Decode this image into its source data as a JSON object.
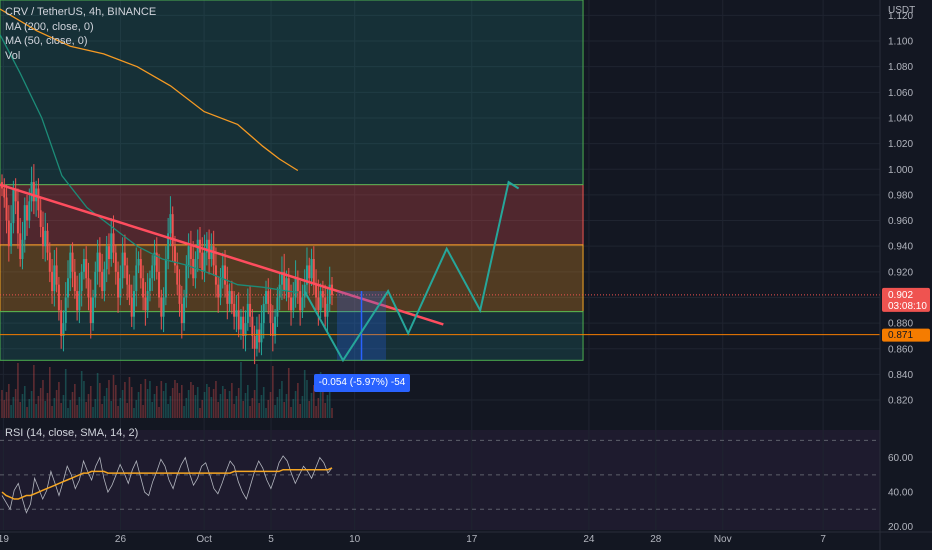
{
  "legend": {
    "symbol": "CRV / TetherUS, 4h, BINANCE",
    "ma200": "MA (200, close, 0)",
    "ma50": "MA (50, close, 0)",
    "vol": "Vol"
  },
  "rsi_legend": "RSI (14, close, SMA, 14, 2)",
  "currency": "USDT",
  "price_label": "0.902",
  "countdown": "03:08:10",
  "line_label": "0.871",
  "measure_label": "-0.054 (-5.97%) -54",
  "colors": {
    "background": "#131722",
    "up": "#26a69a",
    "down": "#ef5350",
    "ma200": "#f59a23",
    "ma50": "#1c8c78",
    "trendline": "#ff4d5e",
    "projection": "#26a69a",
    "measure": "#2962ff",
    "hline": "#f57c00"
  },
  "chart_data": [
    {
      "type": "candlestick",
      "title": "CRV / TetherUS, 4h, BINANCE",
      "y_unit": "USDT",
      "y_ticks": [
        1.12,
        1.1,
        1.08,
        1.06,
        1.04,
        1.02,
        1.0,
        0.98,
        0.96,
        0.94,
        0.92,
        0.9,
        0.88,
        0.86,
        0.84,
        0.82
      ],
      "y_tick_labels": [
        "1.120",
        "1.100",
        "1.080",
        "1.060",
        "1.040",
        "1.020",
        "1.000",
        "0.980",
        "0.960",
        "0.940",
        "0.920",
        "",
        "0.880",
        "0.860",
        "0.840",
        "0.820"
      ],
      "x_tick_labels": [
        "19",
        "26",
        "Oct",
        "5",
        "10",
        "17",
        "24",
        "28",
        "Nov",
        "7"
      ],
      "x_tick_days": [
        19,
        26,
        31,
        35,
        40,
        47,
        54,
        58,
        62,
        68
      ],
      "x_domain_days": [
        18.8,
        71.4
      ],
      "ylim": [
        0.806,
        1.132
      ],
      "last_price": 0.902,
      "candles": [
        [
          0.99,
          0.985
        ],
        [
          0.985,
          0.978
        ],
        [
          0.978,
          0.96
        ],
        [
          0.96,
          0.94
        ],
        [
          0.94,
          0.958
        ],
        [
          0.958,
          0.985
        ],
        [
          0.985,
          0.975
        ],
        [
          0.975,
          0.95
        ],
        [
          0.95,
          0.93
        ],
        [
          0.93,
          0.945
        ],
        [
          0.945,
          0.972
        ],
        [
          0.972,
          0.96
        ],
        [
          0.96,
          0.975
        ],
        [
          0.975,
          0.99
        ],
        [
          0.99,
          0.975
        ],
        [
          0.975,
          0.985
        ],
        [
          0.985,
          0.968
        ],
        [
          0.968,
          0.955
        ],
        [
          0.955,
          0.94
        ],
        [
          0.94,
          0.952
        ],
        [
          0.952,
          0.935
        ],
        [
          0.935,
          0.92
        ],
        [
          0.92,
          0.905
        ],
        [
          0.905,
          0.925
        ],
        [
          0.925,
          0.91
        ],
        [
          0.91,
          0.89
        ],
        [
          0.89,
          0.87
        ],
        [
          0.87,
          0.88
        ],
        [
          0.88,
          0.9
        ],
        [
          0.9,
          0.915
        ],
        [
          0.915,
          0.935
        ],
        [
          0.935,
          0.92
        ],
        [
          0.92,
          0.905
        ],
        [
          0.905,
          0.89
        ],
        [
          0.89,
          0.905
        ],
        [
          0.905,
          0.92
        ],
        [
          0.92,
          0.93
        ],
        [
          0.93,
          0.915
        ],
        [
          0.915,
          0.9
        ],
        [
          0.9,
          0.88
        ],
        [
          0.88,
          0.9
        ],
        [
          0.9,
          0.92
        ],
        [
          0.92,
          0.935
        ],
        [
          0.935,
          0.92
        ],
        [
          0.92,
          0.905
        ],
        [
          0.905,
          0.922
        ],
        [
          0.922,
          0.94
        ],
        [
          0.94,
          0.93
        ],
        [
          0.93,
          0.95
        ],
        [
          0.95,
          0.935
        ],
        [
          0.935,
          0.92
        ],
        [
          0.92,
          0.9
        ],
        [
          0.9,
          0.915
        ],
        [
          0.915,
          0.935
        ],
        [
          0.935,
          0.925
        ],
        [
          0.925,
          0.91
        ],
        [
          0.91,
          0.9
        ],
        [
          0.9,
          0.885
        ],
        [
          0.885,
          0.905
        ],
        [
          0.905,
          0.925
        ],
        [
          0.925,
          0.93
        ],
        [
          0.93,
          0.915
        ],
        [
          0.915,
          0.9
        ],
        [
          0.9,
          0.89
        ],
        [
          0.89,
          0.905
        ],
        [
          0.905,
          0.915
        ],
        [
          0.915,
          0.925
        ],
        [
          0.925,
          0.935
        ],
        [
          0.935,
          0.92
        ],
        [
          0.92,
          0.9
        ],
        [
          0.9,
          0.885
        ],
        [
          0.885,
          0.9
        ],
        [
          0.9,
          0.93
        ],
        [
          0.93,
          0.95
        ],
        [
          0.95,
          0.965
        ],
        [
          0.965,
          0.94
        ],
        [
          0.94,
          0.925
        ],
        [
          0.925,
          0.91
        ],
        [
          0.91,
          0.895
        ],
        [
          0.895,
          0.88
        ],
        [
          0.88,
          0.9
        ],
        [
          0.9,
          0.925
        ],
        [
          0.925,
          0.94
        ],
        [
          0.94,
          0.93
        ],
        [
          0.93,
          0.915
        ],
        [
          0.915,
          0.93
        ],
        [
          0.93,
          0.945
        ],
        [
          0.945,
          0.935
        ],
        [
          0.935,
          0.92
        ],
        [
          0.92,
          0.935
        ],
        [
          0.935,
          0.945
        ],
        [
          0.945,
          0.93
        ],
        [
          0.93,
          0.94
        ],
        [
          0.94,
          0.925
        ],
        [
          0.925,
          0.91
        ],
        [
          0.91,
          0.9
        ],
        [
          0.9,
          0.915
        ],
        [
          0.915,
          0.925
        ],
        [
          0.925,
          0.91
        ],
        [
          0.91,
          0.895
        ],
        [
          0.895,
          0.905
        ],
        [
          0.905,
          0.895
        ],
        [
          0.895,
          0.885
        ],
        [
          0.885,
          0.89
        ],
        [
          0.89,
          0.875
        ],
        [
          0.875,
          0.885
        ],
        [
          0.885,
          0.87
        ],
        [
          0.87,
          0.88
        ],
        [
          0.88,
          0.895
        ],
        [
          0.895,
          0.885
        ],
        [
          0.885,
          0.87
        ],
        [
          0.87,
          0.86
        ],
        [
          0.86,
          0.875
        ],
        [
          0.875,
          0.865
        ],
        [
          0.865,
          0.88
        ],
        [
          0.88,
          0.895
        ],
        [
          0.895,
          0.905
        ],
        [
          0.905,
          0.895
        ],
        [
          0.895,
          0.88
        ],
        [
          0.88,
          0.87
        ],
        [
          0.87,
          0.885
        ],
        [
          0.885,
          0.9
        ],
        [
          0.9,
          0.91
        ],
        [
          0.91,
          0.92
        ],
        [
          0.92,
          0.905
        ],
        [
          0.905,
          0.915
        ],
        [
          0.915,
          0.9
        ],
        [
          0.9,
          0.89
        ],
        [
          0.89,
          0.9
        ],
        [
          0.9,
          0.915
        ],
        [
          0.915,
          0.905
        ],
        [
          0.905,
          0.89
        ],
        [
          0.89,
          0.9
        ],
        [
          0.9,
          0.91
        ],
        [
          0.91,
          0.925
        ],
        [
          0.925,
          0.915
        ],
        [
          0.915,
          0.93
        ],
        [
          0.93,
          0.91
        ],
        [
          0.91,
          0.9
        ],
        [
          0.9,
          0.89
        ],
        [
          0.89,
          0.905
        ],
        [
          0.905,
          0.9
        ],
        [
          0.9,
          0.885
        ],
        [
          0.885,
          0.895
        ],
        [
          0.895,
          0.91
        ],
        [
          0.91,
          0.902
        ]
      ],
      "moving_averages": [
        {
          "name": "MA (200, close, 0)",
          "points": [
            [
              18.8,
              1.125
            ],
            [
              21,
              1.108
            ],
            [
              23,
              1.096
            ],
            [
              25,
              1.09
            ],
            [
              27,
              1.08
            ],
            [
              29,
              1.065
            ],
            [
              31,
              1.045
            ],
            [
              33,
              1.035
            ],
            [
              34.5,
              1.018
            ],
            [
              35.5,
              1.008
            ],
            [
              36.6,
              0.999
            ]
          ]
        },
        {
          "name": "MA (50, close, 0)",
          "points": [
            [
              18.8,
              1.105
            ],
            [
              20,
              1.075
            ],
            [
              21.3,
              1.04
            ],
            [
              22.5,
              0.995
            ],
            [
              24,
              0.97
            ],
            [
              25.5,
              0.955
            ],
            [
              27,
              0.94
            ],
            [
              28.5,
              0.93
            ],
            [
              30,
              0.925
            ],
            [
              31.5,
              0.918
            ],
            [
              33,
              0.91
            ],
            [
              34.5,
              0.908
            ],
            [
              36,
              0.905
            ],
            [
              36.6,
              0.904
            ]
          ]
        }
      ],
      "zones": [
        {
          "from": 0.941,
          "to": 0.988,
          "color": "red"
        },
        {
          "from": 0.889,
          "to": 0.941,
          "color": "orange"
        },
        {
          "from": 0.851,
          "to": 0.889,
          "color": "green"
        },
        {
          "from": 0.988,
          "to": 1.132,
          "color": "green"
        }
      ],
      "trendline": [
        [
          18.8,
          0.988
        ],
        [
          45.3,
          0.879
        ]
      ],
      "horizontal_lines": [
        {
          "value": 0.871,
          "label": "0.871"
        }
      ],
      "projection_path": [
        [
          37,
          0.905
        ],
        [
          39.3,
          0.851
        ],
        [
          42,
          0.905
        ],
        [
          43.2,
          0.872
        ],
        [
          45.5,
          0.938
        ],
        [
          47.5,
          0.89
        ],
        [
          49.2,
          0.99
        ],
        [
          49.8,
          0.985
        ]
      ],
      "measure": {
        "from": 0.905,
        "to": 0.851,
        "label": "-0.054 (-5.97%) -54"
      }
    },
    {
      "type": "line",
      "title": "RSI (14, close, SMA, 14, 2)",
      "y_ticks": [
        60.0,
        40.0,
        20.0
      ],
      "y_tick_labels": [
        "60.00",
        "40.00",
        "20.00"
      ],
      "ylim": [
        18,
        76
      ],
      "bands": [
        70,
        50,
        30
      ],
      "series": [
        {
          "name": "RSI",
          "values": [
            38,
            34,
            30,
            41,
            45,
            36,
            28,
            33,
            48,
            42,
            36,
            41,
            52,
            45,
            38,
            46,
            55,
            50,
            42,
            47,
            58,
            52,
            47,
            55,
            60,
            48,
            40,
            44,
            50,
            56,
            51,
            45,
            53,
            58,
            49,
            40,
            38,
            46,
            52,
            59,
            55,
            47,
            42,
            50,
            56,
            60,
            51,
            44,
            48,
            55,
            57,
            50,
            42,
            39,
            45,
            52,
            58,
            55,
            46,
            40,
            36,
            44,
            52,
            58,
            54,
            47,
            42,
            49,
            57,
            61,
            58,
            51,
            45,
            50,
            55,
            52,
            48,
            54,
            60,
            57,
            51,
            54
          ]
        },
        {
          "name": "SMA",
          "values": [
            40,
            38,
            37,
            36,
            36,
            37,
            38,
            38,
            39,
            40,
            41,
            42,
            43,
            44,
            45,
            46,
            47,
            48,
            49,
            50,
            51,
            51,
            52,
            52,
            52,
            52,
            51,
            51,
            51,
            51,
            51,
            51,
            51,
            51,
            51,
            51,
            51,
            51,
            51,
            51,
            51,
            51,
            51,
            51,
            51,
            51,
            51,
            51,
            51,
            51,
            51,
            51,
            51,
            51,
            51,
            51,
            51,
            52,
            52,
            52,
            52,
            52,
            52,
            52,
            52,
            52,
            52,
            52,
            52,
            53,
            53,
            53,
            53,
            53,
            53,
            53,
            53,
            53,
            53,
            53,
            53,
            54
          ]
        }
      ]
    }
  ]
}
